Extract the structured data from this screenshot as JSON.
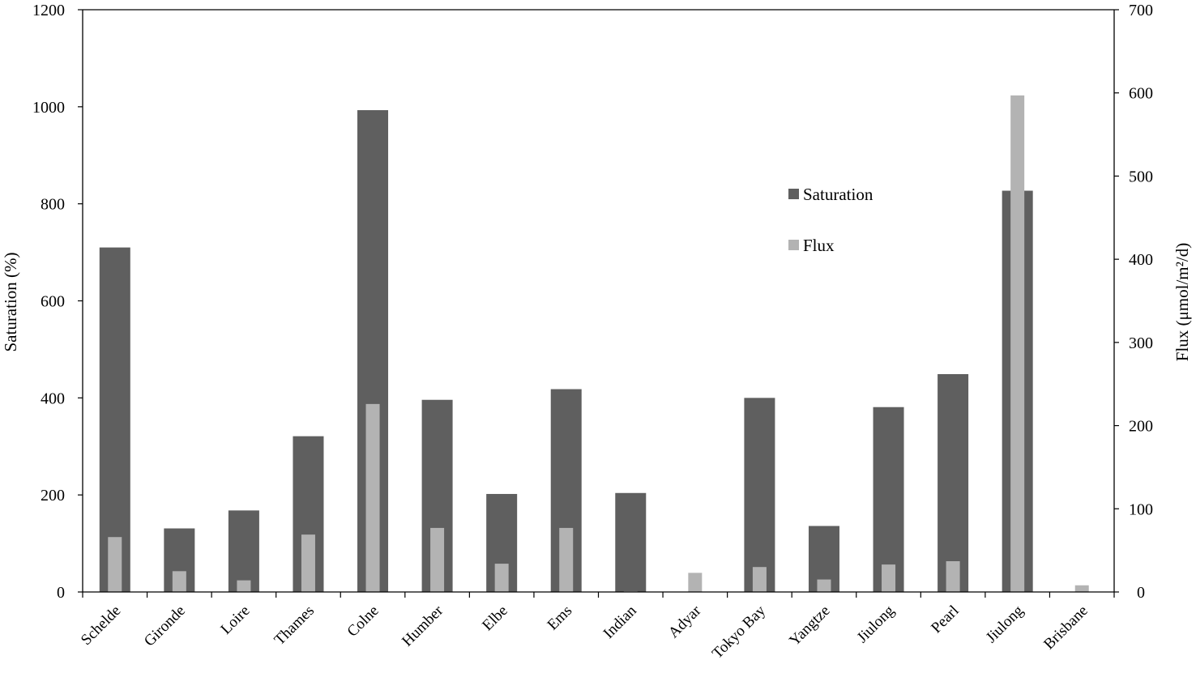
{
  "chart_data": {
    "type": "bar",
    "categories": [
      "Schelde",
      "Gironde",
      "Loire",
      "Thames",
      "Colne",
      "Humber",
      "Elbe",
      "Ems",
      "Indian",
      "Adyar",
      "Tokyo Bay",
      "Yangtze",
      "Jiulong",
      "Pearl",
      "Jiulong",
      "Brisbane"
    ],
    "series": [
      {
        "name": "Saturation",
        "axis": "left",
        "color": "#5f5f5f",
        "values": [
          710,
          131,
          168,
          321,
          993,
          396,
          202,
          418,
          204,
          null,
          400,
          136,
          381,
          449,
          827,
          null
        ]
      },
      {
        "name": "Flux",
        "axis": "right",
        "color": "#b3b3b3",
        "values": [
          66,
          25,
          14,
          69,
          226,
          77,
          34,
          77,
          1,
          23,
          30,
          15,
          33,
          37,
          597,
          8
        ]
      }
    ],
    "ylabel": "Saturation (%)",
    "y2label": "Flux (μmol/m²/d)",
    "ylim": [
      0,
      1200
    ],
    "y2lim": [
      0,
      700
    ],
    "yticks": [
      "0",
      "200",
      "400",
      "600",
      "800",
      "1000",
      "1200"
    ],
    "y2ticks": [
      "0",
      "100",
      "200",
      "300",
      "400",
      "500",
      "600",
      "700"
    ],
    "legend_position": "upper-right-inside",
    "grid": false
  }
}
